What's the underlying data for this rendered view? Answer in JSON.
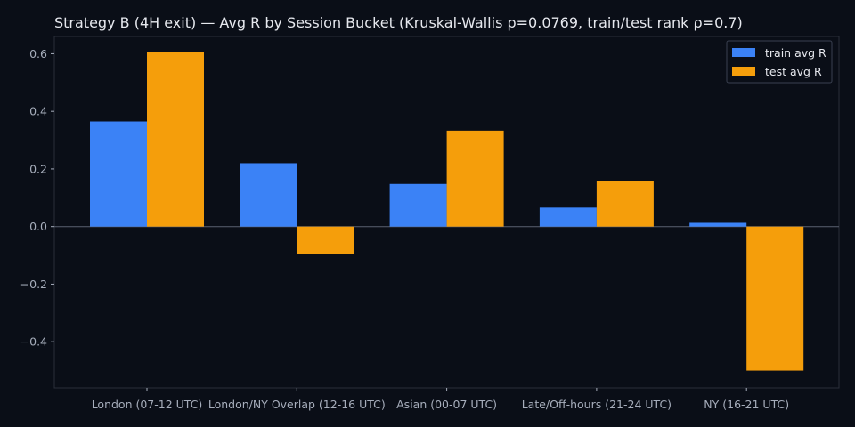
{
  "chart_data": {
    "type": "bar",
    "title": "Strategy B (4H exit) — Avg R by Session Bucket (Kruskal-Wallis p=0.0769, train/test rank ρ=0.7)",
    "xlabel": "",
    "ylabel": "",
    "categories": [
      "London (07-12 UTC)",
      "London/NY Overlap (12-16 UTC)",
      "Asian (00-07 UTC)",
      "Late/Off-hours (21-24 UTC)",
      "NY (16-21 UTC)"
    ],
    "series": [
      {
        "name": "train avg R",
        "color": "#3b82f6",
        "values": [
          0.365,
          0.22,
          0.148,
          0.066,
          0.013
        ]
      },
      {
        "name": "test avg R",
        "color": "#f59e0b",
        "values": [
          0.605,
          -0.095,
          0.333,
          0.158,
          -0.5
        ]
      }
    ],
    "ylim": [
      -0.56,
      0.66
    ],
    "yticks": [
      -0.4,
      -0.2,
      0.0,
      0.2,
      0.4,
      0.6
    ],
    "ytick_labels": [
      "−0.4",
      "−0.2",
      "0.0",
      "0.2",
      "0.4",
      "0.6"
    ],
    "grid": false,
    "legend": "top-right",
    "colors": {
      "background": "#0a0e17",
      "axes_border": "#2a2f3a",
      "zero_line": "#5a6070",
      "text": "#e6e8ee",
      "tick_text": "#a6adbb"
    }
  }
}
